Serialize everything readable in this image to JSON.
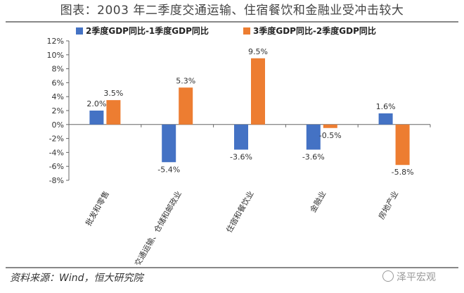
{
  "title": "图表：2003 年二季度交通运输、住宿餐饮和金融业受冲击较大",
  "source": "资料来源：Wind，恒大研究院",
  "watermark": "泽平宏观",
  "chart_data": {
    "type": "bar",
    "categories": [
      "批发和零售",
      "交通运输、仓储和邮政业",
      "住宿和餐饮业",
      "金融业",
      "房地产业"
    ],
    "series": [
      {
        "name": "2季度GDP同比-1季度GDP同比",
        "color": "#4472C4",
        "values": [
          2.0,
          -5.4,
          -3.6,
          -3.6,
          1.6
        ],
        "labels": [
          "2.0%",
          "-5.4%",
          "-3.6%",
          "-3.6%",
          "1.6%"
        ]
      },
      {
        "name": "3季度GDP同比-2季度GDP同比",
        "color": "#ED7D31",
        "values": [
          3.5,
          5.3,
          9.5,
          -0.5,
          -5.8
        ],
        "labels": [
          "3.5%",
          "5.3%",
          "9.5%",
          "-0.5%",
          "-5.8%"
        ]
      }
    ],
    "ylim": [
      -8,
      12
    ],
    "yticks": [
      12,
      10,
      8,
      6,
      4,
      2,
      0,
      -2,
      -4,
      -6,
      -8
    ],
    "ytick_labels": [
      "12%",
      "10%",
      "8%",
      "6%",
      "4%",
      "2%",
      "0%",
      "-2%",
      "-4%",
      "-6%",
      "-8%"
    ],
    "legend": "top",
    "grid": false
  }
}
